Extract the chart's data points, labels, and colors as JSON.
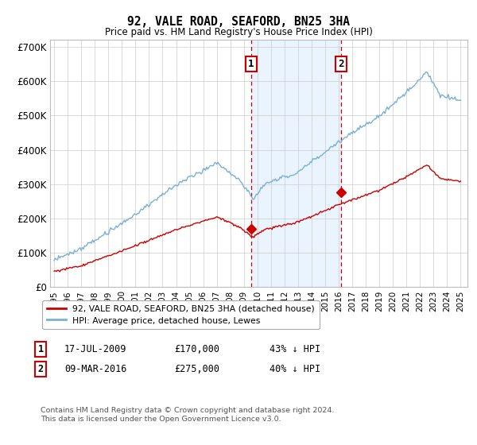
{
  "title": "92, VALE ROAD, SEAFORD, BN25 3HA",
  "subtitle": "Price paid vs. HM Land Registry's House Price Index (HPI)",
  "legend_line1": "92, VALE ROAD, SEAFORD, BN25 3HA (detached house)",
  "legend_line2": "HPI: Average price, detached house, Lewes",
  "transaction1_date": "17-JUL-2009",
  "transaction1_price": "£170,000",
  "transaction1_pct": "43% ↓ HPI",
  "transaction1_year": 2009.54,
  "transaction1_value": 170000,
  "transaction2_date": "09-MAR-2016",
  "transaction2_price": "£275,000",
  "transaction2_pct": "40% ↓ HPI",
  "transaction2_year": 2016.19,
  "transaction2_value": 275000,
  "hpi_color": "#7ab0d4",
  "price_color": "#cc0000",
  "vline_color": "#cc0000",
  "shade_color": "#ddeeff",
  "footer": "Contains HM Land Registry data © Crown copyright and database right 2024.\nThis data is licensed under the Open Government Licence v3.0.",
  "ylim": [
    0,
    720000
  ],
  "yticks": [
    0,
    100000,
    200000,
    300000,
    400000,
    500000,
    600000,
    700000
  ],
  "ytick_labels": [
    "£0",
    "£100K",
    "£200K",
    "£300K",
    "£400K",
    "£500K",
    "£600K",
    "£700K"
  ],
  "xlim_start": 1994.7,
  "xlim_end": 2025.5
}
